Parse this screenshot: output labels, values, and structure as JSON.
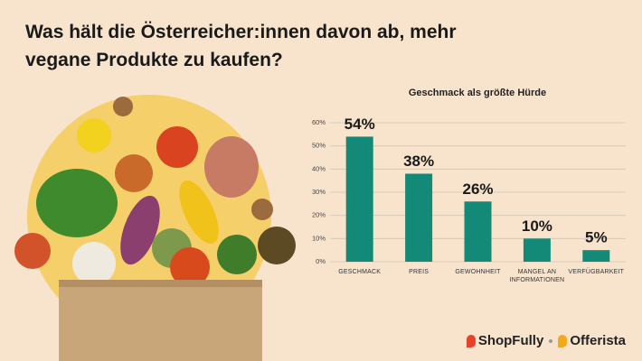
{
  "title": "Was hält die Österreicher:innen davon ab, mehr vegane Produkte zu kaufen?",
  "chart_data": {
    "type": "bar",
    "title": "Geschmack als größte Hürde",
    "categories": [
      "GESCHMACK",
      "PREIS",
      "GEWOHNHEIT",
      "MANGEL AN INFORMATIONEN",
      "VERFÜGBARKEIT"
    ],
    "values": [
      54,
      38,
      26,
      10,
      5
    ],
    "value_labels": [
      "54%",
      "38%",
      "26%",
      "10%",
      "5%"
    ],
    "color": "#138a78",
    "ylim": [
      0,
      60
    ],
    "yticks": [
      {
        "value": 0,
        "label": "0%"
      },
      {
        "value": 10,
        "label": "10%"
      },
      {
        "value": 20,
        "label": "20%"
      },
      {
        "value": 30,
        "label": "30%"
      },
      {
        "value": 40,
        "label": "40%"
      },
      {
        "value": 50,
        "label": "50%"
      },
      {
        "value": 60,
        "label": "60%"
      }
    ],
    "grid": true
  },
  "footer": {
    "brands": [
      "ShopFully",
      "Offerista"
    ]
  }
}
